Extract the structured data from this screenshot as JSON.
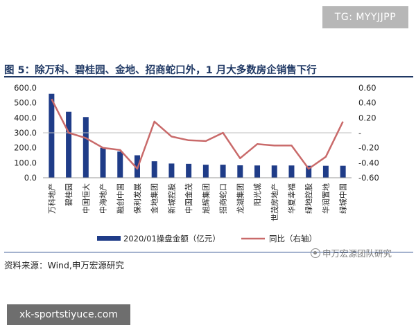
{
  "badges": {
    "top": "TG: MYYJJPP",
    "bottom": "xk-sportstiyuce.com"
  },
  "figure": {
    "title": "图 5：除万科、碧桂园、金地、招商蛇口外，1 月大多数房企销售下行",
    "source": "资料来源：Wind,申万宏源研究",
    "watermark": "申万宏源团队研究"
  },
  "colors": {
    "bar": "#1f3c88",
    "line": "#c96a6a",
    "title": "#1f3864"
  },
  "chart_data": {
    "type": "bar",
    "categories": [
      "万科地产",
      "碧桂园",
      "中国恒大",
      "中海地产",
      "融创中国",
      "保利发展",
      "金地集团",
      "新城控股",
      "中国金茂",
      "旭辉集团",
      "招商蛇口",
      "龙湖集团",
      "阳光城",
      "世茂房地产",
      "华夏幸福",
      "绿地控股",
      "华润置地",
      "绿城中国"
    ],
    "series": [
      {
        "name": "2020/01操盘金额（亿元）",
        "type": "bar",
        "axis": "left",
        "values": [
          560,
          440,
          405,
          200,
          175,
          150,
          110,
          95,
          93,
          87,
          87,
          83,
          82,
          82,
          82,
          80,
          80,
          80
        ]
      },
      {
        "name": "同比（右轴）",
        "type": "line",
        "axis": "right",
        "values": [
          0.45,
          0.0,
          -0.07,
          -0.2,
          -0.23,
          -0.48,
          0.15,
          -0.05,
          -0.1,
          -0.11,
          0.0,
          -0.34,
          -0.15,
          -0.17,
          -0.17,
          -0.48,
          -0.32,
          0.15
        ]
      }
    ],
    "left_axis": {
      "min": 0,
      "max": 600,
      "ticks": [
        "0.0",
        "100.0",
        "200.0",
        "300.0",
        "400.0",
        "500.0",
        "600.0"
      ]
    },
    "right_axis": {
      "min": -0.6,
      "max": 0.6,
      "ticks": [
        "-0.60",
        "-0.40",
        "-0.20",
        "-",
        "0.20",
        "0.40",
        "0.60"
      ]
    },
    "legend_position": "bottom",
    "grid": false
  }
}
